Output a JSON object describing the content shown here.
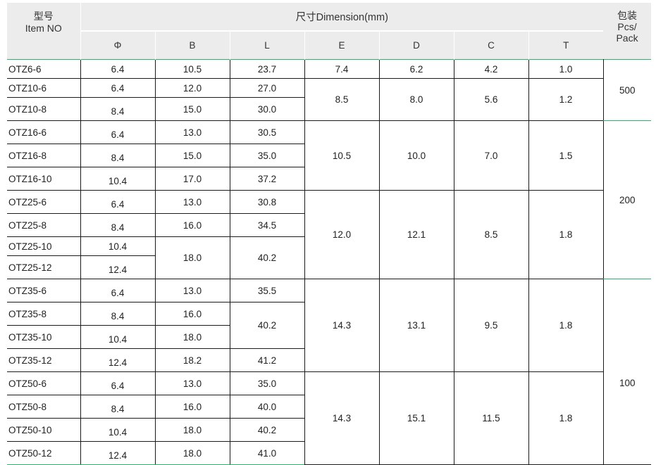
{
  "header": {
    "item_cn": "型号",
    "item_en": "Item NO",
    "dimension": "尺寸Dimension(mm)",
    "pack_cn": "包装",
    "pack_en1": "Pcs/",
    "pack_en2": "Pack",
    "cols": [
      "Φ",
      "B",
      "L",
      "E",
      "D",
      "C",
      "T"
    ]
  },
  "rows": [
    {
      "item": "OTZ6-6",
      "phi": "6.4",
      "b": "10.5",
      "l": "23.7",
      "e": "7.4",
      "d": "6.2",
      "c": "4.2",
      "t": "1.0"
    },
    {
      "item": "OTZ10-6",
      "phi": "6.4",
      "b": "12.0",
      "l": "27.0"
    },
    {
      "item": "OTZ10-8",
      "phi": "8.4",
      "b": "15.0",
      "l": "30.0"
    },
    {
      "item": "OTZ16-6",
      "phi": "6.4",
      "b": "13.0",
      "l": "30.5"
    },
    {
      "item": "OTZ16-8",
      "phi": "8.4",
      "b": "15.0",
      "l": "35.0"
    },
    {
      "item": "OTZ16-10",
      "phi": "10.4",
      "b": "17.0",
      "l": "37.2"
    },
    {
      "item": "OTZ25-6",
      "phi": "6.4",
      "b": "13.0",
      "l": "30.8"
    },
    {
      "item": "OTZ25-8",
      "phi": "8.4",
      "b": "16.0",
      "l": "34.5"
    },
    {
      "item": "OTZ25-10",
      "phi": "10.4"
    },
    {
      "item": "OTZ25-12",
      "phi": "12.4"
    },
    {
      "item": "OTZ35-6",
      "phi": "6.4",
      "b": "13.0",
      "l": "35.5"
    },
    {
      "item": "OTZ35-8",
      "phi": "8.4",
      "b": "16.0"
    },
    {
      "item": "OTZ35-10",
      "phi": "10.4",
      "b": "18.0"
    },
    {
      "item": "OTZ35-12",
      "phi": "12.4",
      "b": "18.2",
      "l": "41.2"
    },
    {
      "item": "OTZ50-6",
      "phi": "6.4",
      "b": "13.0",
      "l": "35.0"
    },
    {
      "item": "OTZ50-8",
      "phi": "8.4",
      "b": "16.0",
      "l": "40.0"
    },
    {
      "item": "OTZ50-10",
      "phi": "10.4",
      "b": "18.0",
      "l": "40.2"
    },
    {
      "item": "OTZ50-12",
      "phi": "12.4",
      "b": "18.0",
      "l": "41.0"
    }
  ],
  "merged": {
    "otz10": {
      "e": "8.5",
      "d": "8.0",
      "c": "5.6",
      "t": "1.2"
    },
    "otz16": {
      "e": "10.5",
      "d": "10.0",
      "c": "7.0",
      "t": "1.5"
    },
    "otz25": {
      "b": "18.0",
      "l": "40.2",
      "e": "12.0",
      "d": "12.1",
      "c": "8.5",
      "t": "1.8"
    },
    "otz35": {
      "l": "40.2",
      "e": "14.3",
      "d": "13.1",
      "c": "9.5",
      "t": "1.8"
    },
    "otz50": {
      "e": "14.3",
      "d": "15.1",
      "c": "11.5",
      "t": "1.8"
    },
    "pack": [
      "500",
      "200",
      "100"
    ]
  }
}
